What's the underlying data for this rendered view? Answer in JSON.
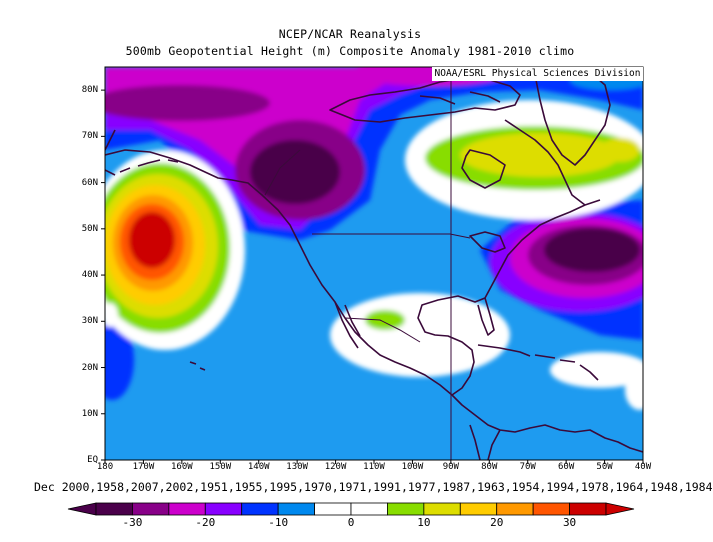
{
  "header": {
    "title_line1": "NCEP/NCAR Reanalysis",
    "title_line2": "500mb Geopotential Height (m) Composite Anomaly 1981-2010 climo"
  },
  "credit": "NOAA/ESRL Physical Sciences Division",
  "footer": {
    "dates": "Dec 2000,1958,2007,2002,1951,1955,1995,1970,1971,1991,1977,1987,1963,1954,1994,1978,1964,1948,1984"
  },
  "map": {
    "lat_labels": [
      "EQ",
      "10N",
      "20N",
      "30N",
      "40N",
      "50N",
      "60N",
      "70N",
      "80N"
    ],
    "lon_labels": [
      "180",
      "170W",
      "160W",
      "150W",
      "140W",
      "130W",
      "120W",
      "110W",
      "100W",
      "90W",
      "80W",
      "70W",
      "60W",
      "50W",
      "40W"
    ],
    "lon_range": [
      -180,
      -40
    ],
    "lat_range": [
      0,
      85
    ],
    "meridian_line": "90W"
  },
  "colorbar": {
    "labels": [
      "-30",
      "-20",
      "-10",
      "0",
      "10",
      "20",
      "30"
    ],
    "colors": [
      "#4a004a",
      "#880088",
      "#cc00cc",
      "#8800ff",
      "#0033ff",
      "#0088ee",
      "#ffffff",
      "#ffffff",
      "#88dd00",
      "#dddd00",
      "#ffcc00",
      "#ff9900",
      "#ff5500",
      "#cc0000"
    ]
  }
}
